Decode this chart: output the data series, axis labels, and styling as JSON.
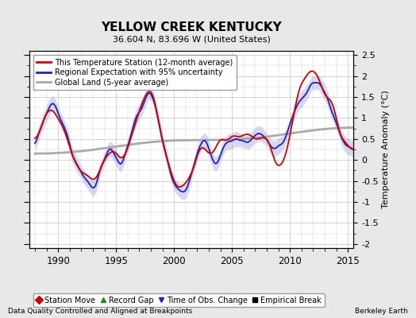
{
  "title": "YELLOW CREEK KENTUCKY",
  "subtitle": "36.604 N, 83.696 W (United States)",
  "ylabel": "Temperature Anomaly (°C)",
  "xlabel_note": "Data Quality Controlled and Aligned at Breakpoints",
  "credit": "Berkeley Earth",
  "xlim": [
    1987.5,
    2015.5
  ],
  "ylim": [
    -2.1,
    2.6
  ],
  "yticks": [
    -2,
    -1.5,
    -1,
    -0.5,
    0,
    0.5,
    1,
    1.5,
    2,
    2.5
  ],
  "xticks": [
    1990,
    1995,
    2000,
    2005,
    2010,
    2015
  ],
  "line_station_color": "#cc0000",
  "line_regional_color": "#2222bb",
  "line_global_color": "#aaaaaa",
  "uncertainty_color": "#aaaadd",
  "uncertainty_alpha": 0.45,
  "bg_color": "#e8e8e8",
  "plot_bg_color": "#ffffff",
  "grid_color": "#cccccc",
  "legend_entries": [
    {
      "label": "This Temperature Station (12-month average)",
      "color": "#cc0000",
      "lw": 1.5
    },
    {
      "label": "Regional Expectation with 95% uncertainty",
      "color": "#2222bb",
      "lw": 1.5
    },
    {
      "label": "Global Land (5-year average)",
      "color": "#aaaaaa",
      "lw": 2.0
    }
  ],
  "legend_marker_entries": [
    {
      "label": "Station Move",
      "color": "#cc0000",
      "marker": "D"
    },
    {
      "label": "Record Gap",
      "color": "#228822",
      "marker": "^"
    },
    {
      "label": "Time of Obs. Change",
      "color": "#2222bb",
      "marker": "v"
    },
    {
      "label": "Empirical Break",
      "color": "#000000",
      "marker": "s"
    }
  ]
}
